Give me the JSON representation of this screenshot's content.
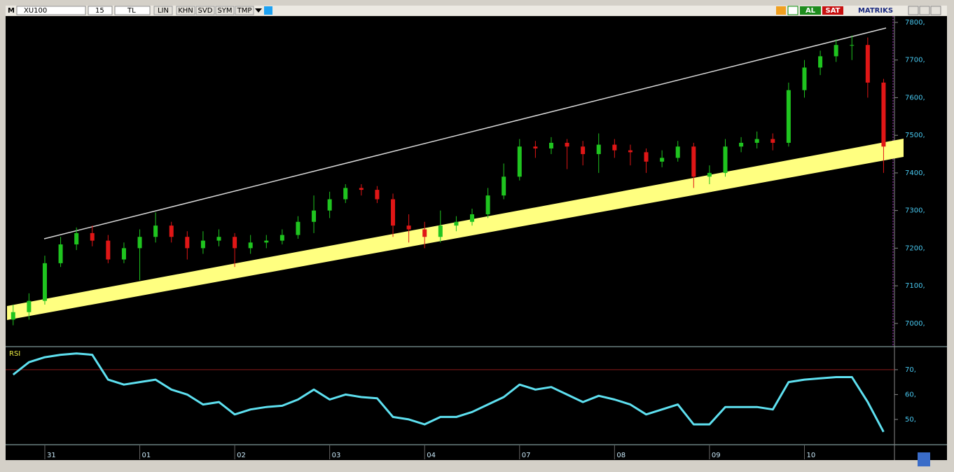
{
  "toolbar": {
    "logo": "M",
    "symbol": "XU100",
    "period": "15",
    "currency": "TL",
    "buttons": [
      "LIN",
      "KHN",
      "SVD",
      "SYM",
      "TMP"
    ],
    "buy": "AL",
    "sell": "SAT",
    "brand": "MATRIKS"
  },
  "chart_data": [
    {
      "type": "candlestick",
      "up_color": "#1fc41f",
      "down_color": "#e01616",
      "x": [
        0,
        1,
        2,
        3,
        4,
        5,
        6,
        7,
        8,
        9,
        10,
        11,
        12,
        13,
        14,
        15,
        16,
        17,
        18,
        19,
        20,
        21,
        22,
        23,
        24,
        25,
        26,
        27,
        28,
        29,
        30,
        31,
        32,
        33,
        34,
        35,
        36,
        37,
        38,
        39,
        40,
        41,
        42,
        43,
        44,
        45,
        46,
        47,
        48,
        49,
        50,
        51,
        52,
        53,
        54,
        55
      ],
      "open": [
        7010,
        7030,
        7060,
        7160,
        7210,
        7240,
        7220,
        7170,
        7200,
        7230,
        7260,
        7230,
        7200,
        7220,
        7230,
        7200,
        7215,
        7220,
        7235,
        7270,
        7300,
        7330,
        7360,
        7355,
        7330,
        7260,
        7250,
        7230,
        7260,
        7270,
        7290,
        7340,
        7390,
        7470,
        7465,
        7480,
        7470,
        7450,
        7475,
        7460,
        7455,
        7430,
        7440,
        7470,
        7390,
        7400,
        7470,
        7480,
        7490,
        7480,
        7620,
        7680,
        7710,
        7740,
        7740,
        7640
      ],
      "high": [
        7050,
        7080,
        7180,
        7230,
        7255,
        7260,
        7235,
        7215,
        7250,
        7295,
        7270,
        7245,
        7245,
        7250,
        7240,
        7235,
        7235,
        7250,
        7285,
        7340,
        7350,
        7370,
        7370,
        7365,
        7345,
        7290,
        7270,
        7300,
        7285,
        7305,
        7360,
        7425,
        7490,
        7485,
        7495,
        7490,
        7485,
        7505,
        7490,
        7475,
        7465,
        7460,
        7485,
        7480,
        7420,
        7490,
        7495,
        7510,
        7505,
        7640,
        7700,
        7725,
        7755,
        7765,
        7760,
        7650
      ],
      "low": [
        6995,
        7010,
        7050,
        7150,
        7195,
        7205,
        7160,
        7160,
        7115,
        7215,
        7215,
        7170,
        7185,
        7205,
        7150,
        7185,
        7200,
        7210,
        7225,
        7240,
        7280,
        7320,
        7340,
        7320,
        7230,
        7215,
        7200,
        7215,
        7245,
        7260,
        7280,
        7330,
        7380,
        7440,
        7450,
        7410,
        7420,
        7400,
        7440,
        7420,
        7400,
        7415,
        7430,
        7360,
        7370,
        7390,
        7455,
        7465,
        7460,
        7470,
        7600,
        7660,
        7695,
        7700,
        7600,
        7400
      ],
      "close": [
        7030,
        7060,
        7160,
        7210,
        7240,
        7220,
        7170,
        7200,
        7230,
        7260,
        7230,
        7200,
        7220,
        7230,
        7200,
        7215,
        7220,
        7235,
        7270,
        7300,
        7330,
        7360,
        7355,
        7330,
        7260,
        7250,
        7230,
        7260,
        7270,
        7290,
        7340,
        7390,
        7470,
        7465,
        7480,
        7470,
        7450,
        7475,
        7460,
        7455,
        7430,
        7440,
        7470,
        7390,
        7400,
        7470,
        7480,
        7490,
        7480,
        7620,
        7680,
        7710,
        7740,
        7740,
        7640,
        7470
      ],
      "xlim": [
        -0.3,
        55.6
      ],
      "xticks": [
        {
          "value": 2,
          "label": "31"
        },
        {
          "value": 8,
          "label": "01"
        },
        {
          "value": 14,
          "label": "02"
        },
        {
          "value": 20,
          "label": "03"
        },
        {
          "value": 26,
          "label": "04"
        },
        {
          "value": 32,
          "label": "07"
        },
        {
          "value": 38,
          "label": "08"
        },
        {
          "value": 44,
          "label": "09"
        },
        {
          "value": 50,
          "label": "10"
        }
      ],
      "ylim": [
        6942,
        7813
      ],
      "yticks": [
        {
          "value": 7000,
          "label": "7000,"
        },
        {
          "value": 7100,
          "label": "7100,"
        },
        {
          "value": 7200,
          "label": "7200,"
        },
        {
          "value": 7300,
          "label": "7300,"
        },
        {
          "value": 7400,
          "label": "7400,"
        },
        {
          "value": 7500,
          "label": "7500,"
        },
        {
          "value": 7600,
          "label": "7600,"
        },
        {
          "value": 7700,
          "label": "7700,"
        },
        {
          "value": 7800,
          "label": "7800,"
        }
      ]
    },
    {
      "type": "line",
      "title": "RSI",
      "color": "#5ee0f0",
      "threshold": 70,
      "threshold_color": "#8b1a1a",
      "values": [
        68,
        73,
        75,
        76,
        76.5,
        76,
        66,
        64,
        65,
        66,
        62,
        60,
        56,
        57,
        52,
        54,
        55,
        55.5,
        58,
        62,
        58,
        60,
        59,
        58.5,
        51,
        50,
        48,
        51,
        51,
        53,
        56,
        59,
        64,
        62,
        63,
        60,
        57,
        59.5,
        58,
        56,
        52,
        54,
        56,
        48,
        48,
        55,
        55,
        55,
        54,
        65,
        66,
        66.5,
        67,
        67,
        57,
        45
      ],
      "ylim": [
        40.4,
        78.7
      ],
      "yticks": [
        {
          "value": 50,
          "label": "50,"
        },
        {
          "value": 60,
          "label": "60,"
        },
        {
          "value": 70,
          "label": "70,"
        }
      ]
    }
  ]
}
